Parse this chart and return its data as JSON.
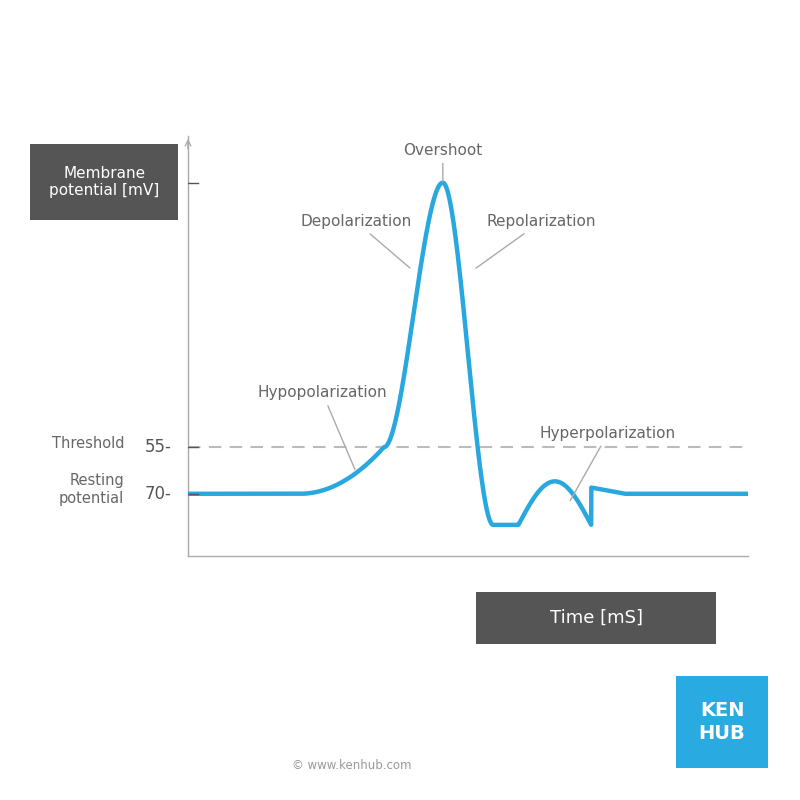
{
  "background_color": "#ffffff",
  "plot_bg_color": "#ffffff",
  "line_color": "#29a8e0",
  "line_width": 3.2,
  "threshold_value": -55,
  "resting_value": -70,
  "peak_value": 30,
  "trough_value": -80,
  "xlabel": "Time [mS]",
  "ylabel": "Membrane\npotential [mV]",
  "ylabel_bg": "#555555",
  "xlabel_bg": "#555555",
  "label_text_color": "#ffffff",
  "axis_color": "#aaaaaa",
  "tick_color": "#555555",
  "dashed_line_color": "#bbbbbb",
  "annotation_color": "#666666",
  "kenhub_color": "#29abe2",
  "kenhub_text": "KEN\nHUB",
  "copyright_text": "© www.kenhub.com"
}
